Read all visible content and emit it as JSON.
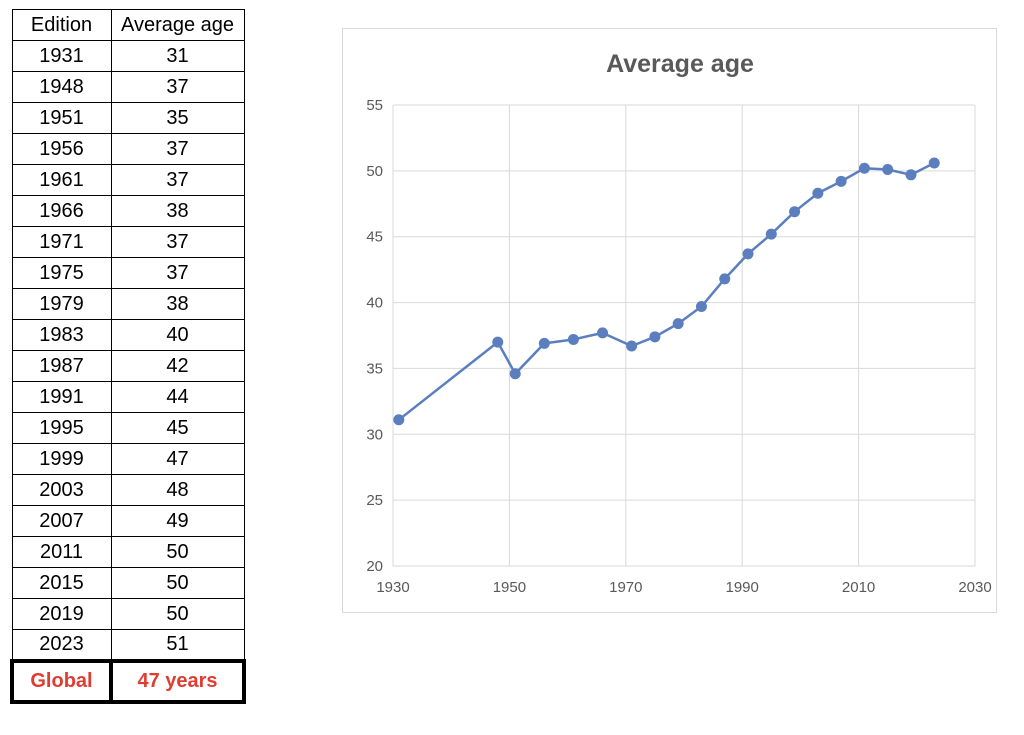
{
  "table": {
    "headers": [
      "Edition",
      "Average age"
    ],
    "rows": [
      [
        "1931",
        "31"
      ],
      [
        "1948",
        "37"
      ],
      [
        "1951",
        "35"
      ],
      [
        "1956",
        "37"
      ],
      [
        "1961",
        "37"
      ],
      [
        "1966",
        "38"
      ],
      [
        "1971",
        "37"
      ],
      [
        "1975",
        "37"
      ],
      [
        "1979",
        "38"
      ],
      [
        "1983",
        "40"
      ],
      [
        "1987",
        "42"
      ],
      [
        "1991",
        "44"
      ],
      [
        "1995",
        "45"
      ],
      [
        "1999",
        "47"
      ],
      [
        "2003",
        "48"
      ],
      [
        "2007",
        "49"
      ],
      [
        "2011",
        "50"
      ],
      [
        "2015",
        "50"
      ],
      [
        "2019",
        "50"
      ],
      [
        "2023",
        "51"
      ]
    ],
    "summary": {
      "label": "Global",
      "value": "47 years"
    },
    "summary_color": "#e03c31"
  },
  "chart_data": {
    "type": "line",
    "title": "Average age",
    "xlabel": "",
    "ylabel": "",
    "x": [
      1931,
      1948,
      1951,
      1956,
      1961,
      1966,
      1971,
      1975,
      1979,
      1983,
      1987,
      1991,
      1995,
      1999,
      2003,
      2007,
      2011,
      2015,
      2019,
      2023
    ],
    "series": [
      {
        "values": [
          31.1,
          37.0,
          34.6,
          36.9,
          37.2,
          37.7,
          36.7,
          37.4,
          38.4,
          39.7,
          41.8,
          43.7,
          45.2,
          46.9,
          48.3,
          49.2,
          50.2,
          50.1,
          49.7,
          50.6
        ]
      }
    ],
    "xlim": [
      1930,
      2030
    ],
    "ylim": [
      20,
      55
    ],
    "xticks": [
      1930,
      1950,
      1970,
      1990,
      2010,
      2030
    ],
    "yticks": [
      20,
      25,
      30,
      35,
      40,
      45,
      50,
      55
    ],
    "grid": true,
    "legend": "none",
    "line_color": "#5b7fbe",
    "grid_color": "#d9d9d9"
  }
}
